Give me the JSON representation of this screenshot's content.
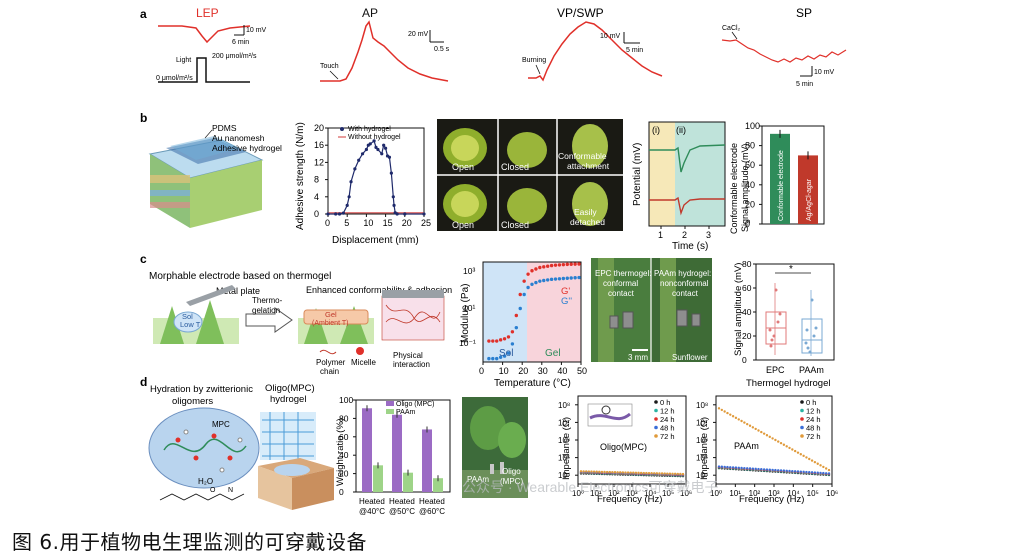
{
  "figure_caption": "图 6.用于植物电生理监测的可穿戴设备",
  "watermark": "公众号 · Wearable Electronics可穿戴电子",
  "panel_a": {
    "label": "a",
    "traces": [
      {
        "title": "LEP",
        "scale_v": "10 mV",
        "scale_t": "6 min",
        "light_label": "Light",
        "light_high": "200 μmol/m²/s",
        "light_low": "0 μmol/m²/s"
      },
      {
        "title": "AP",
        "scale_v": "20 mV",
        "scale_t": "0.5 s",
        "annotation": "Touch"
      },
      {
        "title": "VP/SWP",
        "scale_v": "10 mV",
        "scale_t": "5 min",
        "annotation": "Burning"
      },
      {
        "title": "SP",
        "scale_v": "10 mV",
        "scale_t": "5 min",
        "annotation": "CaCl₂"
      }
    ]
  },
  "panel_b": {
    "label": "b",
    "layers": [
      "PDMS",
      "Au nanomesh",
      "Adhesive hydrogel"
    ],
    "adhesion_chart": {
      "ylabel": "Adhesive strength (N/m)",
      "xlabel": "Displacement (mm)",
      "xticks": [
        "0",
        "5",
        "10",
        "15",
        "20",
        "25"
      ],
      "yticks": [
        "0",
        "4",
        "8",
        "12",
        "16",
        "20"
      ],
      "legend": [
        "With hydrogel",
        "Without hydrogel"
      ]
    },
    "photo_labels": [
      "Open",
      "Closed",
      "Conformable attachment",
      "Open",
      "Closed",
      "Easily detached"
    ],
    "potential_chart": {
      "ylabel": "Potential (mV)",
      "xlabel": "Time (s)",
      "xticks": [
        "1",
        "2",
        "3"
      ],
      "region_labels": [
        "(i)",
        "(ii)"
      ]
    },
    "bar_chart": {
      "ylabel": "Conformable electrode Signal amplitude (mV)",
      "yticks": [
        "0",
        "20",
        "40",
        "60",
        "80",
        "100"
      ],
      "bars": [
        "Conformable electrode",
        "Ag/AgCl-agar"
      ]
    }
  },
  "panel_c": {
    "label": "c",
    "title": "Morphable electrode based on thermogel",
    "metal_plate": "Metal plate",
    "sol": "Sol",
    "low_t": "Low T",
    "process": "Thermo-gelation",
    "enhanced": "Enhanced conformability & adhesion",
    "gel": "Gel",
    "ambient": "(Ambient T)",
    "legend_items": [
      "Polymer chain",
      "Micelle",
      "Physical interaction"
    ],
    "modulus_chart": {
      "ylabel": "Modulus (Pa)",
      "xlabel": "Temperature (°C)",
      "xticks": [
        "0",
        "10",
        "20",
        "30",
        "40",
        "50"
      ],
      "yticks": [
        "10⁻¹",
        "10¹",
        "10³"
      ],
      "legend": [
        "G'",
        "G''"
      ],
      "region_labels": [
        "Sol",
        "Gel"
      ]
    },
    "photo_labels": [
      "EPC thermogel: conformal contact",
      "PAAm hydrogel: nonconformal contact"
    ],
    "scale_bar": "3 mm",
    "plant": "Sunflower",
    "box_chart": {
      "ylabel": "Signal amplitude (mV)",
      "yticks": [
        "0",
        "20",
        "40",
        "60",
        "80"
      ],
      "categories": [
        "EPC",
        "PAAm"
      ],
      "xlabel": "Thermogel hydrogel",
      "significance": "*"
    }
  },
  "panel_d": {
    "label": "d",
    "title": "Hydration by zwitterionic oligomers",
    "mpc_label": "MPC",
    "water_label": "H₂O",
    "hydrogel_title": "Oligo(MPC) hydrogel",
    "weight_chart": {
      "ylabel": "Weight ratio (%)",
      "yticks": [
        "0",
        "20",
        "40",
        "60",
        "80",
        "100"
      ],
      "legend": [
        "Oligo (MPC)",
        "PAAm"
      ],
      "categories": [
        "Heated @40°C",
        "Heated @50°C",
        "Heated @60°C"
      ]
    },
    "photo_labels": [
      "PAAm",
      "Oligo (MPC)"
    ],
    "impedance_left": {
      "ylabel": "Impedance (Ω)",
      "xlabel": "Frequency (Hz)",
      "inner_label": "Oligo(MPC)",
      "legend": [
        "0 h",
        "12 h",
        "24 h",
        "48 h",
        "72 h"
      ]
    },
    "impedance_right": {
      "ylabel": "Impedance (Ω)",
      "xlabel": "Frequency (Hz)",
      "inner_label": "PAAm",
      "legend": [
        "0 h",
        "12 h",
        "24 h",
        "48 h",
        "72 h"
      ]
    },
    "imp_yticks": [
      "10⁴",
      "10⁵",
      "10⁶",
      "10⁷",
      "10⁸"
    ],
    "imp_xticks": [
      "10⁰",
      "10¹",
      "10²",
      "10³",
      "10⁴",
      "10⁵",
      "10⁶"
    ]
  },
  "chart_data": [
    {
      "type": "line",
      "title": "",
      "xlabel": "Displacement (mm)",
      "ylabel": "Adhesive strength (N/m)",
      "xlim": [
        0,
        25
      ],
      "ylim": [
        0,
        20
      ],
      "series": [
        {
          "name": "With hydrogel",
          "x": [
            0,
            2,
            3,
            4,
            5,
            5.5,
            6,
            7,
            8,
            9,
            10,
            10.5,
            11,
            12,
            12.5,
            13,
            14,
            14.5,
            15,
            15.5,
            16,
            16.5,
            17,
            17.2,
            17.5,
            18,
            20,
            25
          ],
          "y": [
            0,
            0,
            0,
            0.2,
            2,
            4,
            7.5,
            10.5,
            12.5,
            14,
            15,
            16,
            16.3,
            17,
            15.5,
            15,
            14,
            16,
            15.3,
            13.5,
            13.2,
            9.5,
            4,
            2,
            0.3,
            0,
            0,
            0
          ]
        },
        {
          "name": "Without hydrogel",
          "x": [
            0,
            5,
            10,
            15,
            20,
            25
          ],
          "y": [
            0.3,
            0.3,
            0.3,
            0.3,
            0.3,
            0.3
          ]
        }
      ]
    },
    {
      "type": "bar",
      "title": "",
      "categories": [
        "Conformable electrode",
        "Ag/AgCl-agar"
      ],
      "values": [
        92,
        70
      ],
      "ylim": [
        0,
        100
      ],
      "ylabel": "Conformable electrode Signal amplitude (mV)"
    },
    {
      "type": "scatter",
      "title": "",
      "xlabel": "Temperature (°C)",
      "ylabel": "Modulus (Pa)",
      "xlim": [
        0,
        50
      ],
      "log_y": true,
      "series": [
        {
          "name": "G'",
          "x": [
            3,
            5,
            7,
            9,
            11,
            13,
            15,
            17,
            19,
            21,
            23,
            25,
            27,
            29,
            31,
            33,
            35,
            37,
            39,
            41,
            43,
            45,
            47,
            49
          ],
          "y": [
            0.4,
            0.4,
            0.4,
            0.45,
            0.5,
            0.6,
            1,
            5,
            40,
            150,
            300,
            420,
            500,
            580,
            620,
            660,
            700,
            730,
            750,
            770,
            790,
            800,
            810,
            820
          ]
        },
        {
          "name": "G''",
          "x": [
            3,
            5,
            7,
            9,
            11,
            13,
            15,
            17,
            19,
            21,
            23,
            25,
            27,
            29,
            31,
            33,
            35,
            37,
            39,
            41,
            43,
            45,
            47,
            49
          ],
          "y": [
            0.07,
            0.07,
            0.07,
            0.08,
            0.09,
            0.12,
            0.3,
            1.5,
            10,
            40,
            80,
            110,
            130,
            150,
            160,
            170,
            180,
            185,
            190,
            195,
            200,
            205,
            210,
            215
          ]
        }
      ]
    },
    {
      "type": "bar",
      "title": "",
      "categories": [
        "Heated @40°C",
        "Heated @50°C",
        "Heated @60°C"
      ],
      "ylim": [
        0,
        100
      ],
      "ylabel": "Weight ratio (%)",
      "series": [
        {
          "name": "Oligo (MPC)",
          "values": [
            91,
            84,
            68
          ]
        },
        {
          "name": "PAAm",
          "values": [
            29,
            21,
            15
          ]
        }
      ]
    }
  ],
  "colors": {
    "trace_red": "#e0302a",
    "navy": "#1f2a6b",
    "green_bar": "#2f8c5a",
    "red_bar": "#c0392b",
    "violet": "#9b6bc4",
    "lightgreen": "#9ed488",
    "sol_blue": "#cfe4f7",
    "gel_pink": "#f8d4db"
  }
}
